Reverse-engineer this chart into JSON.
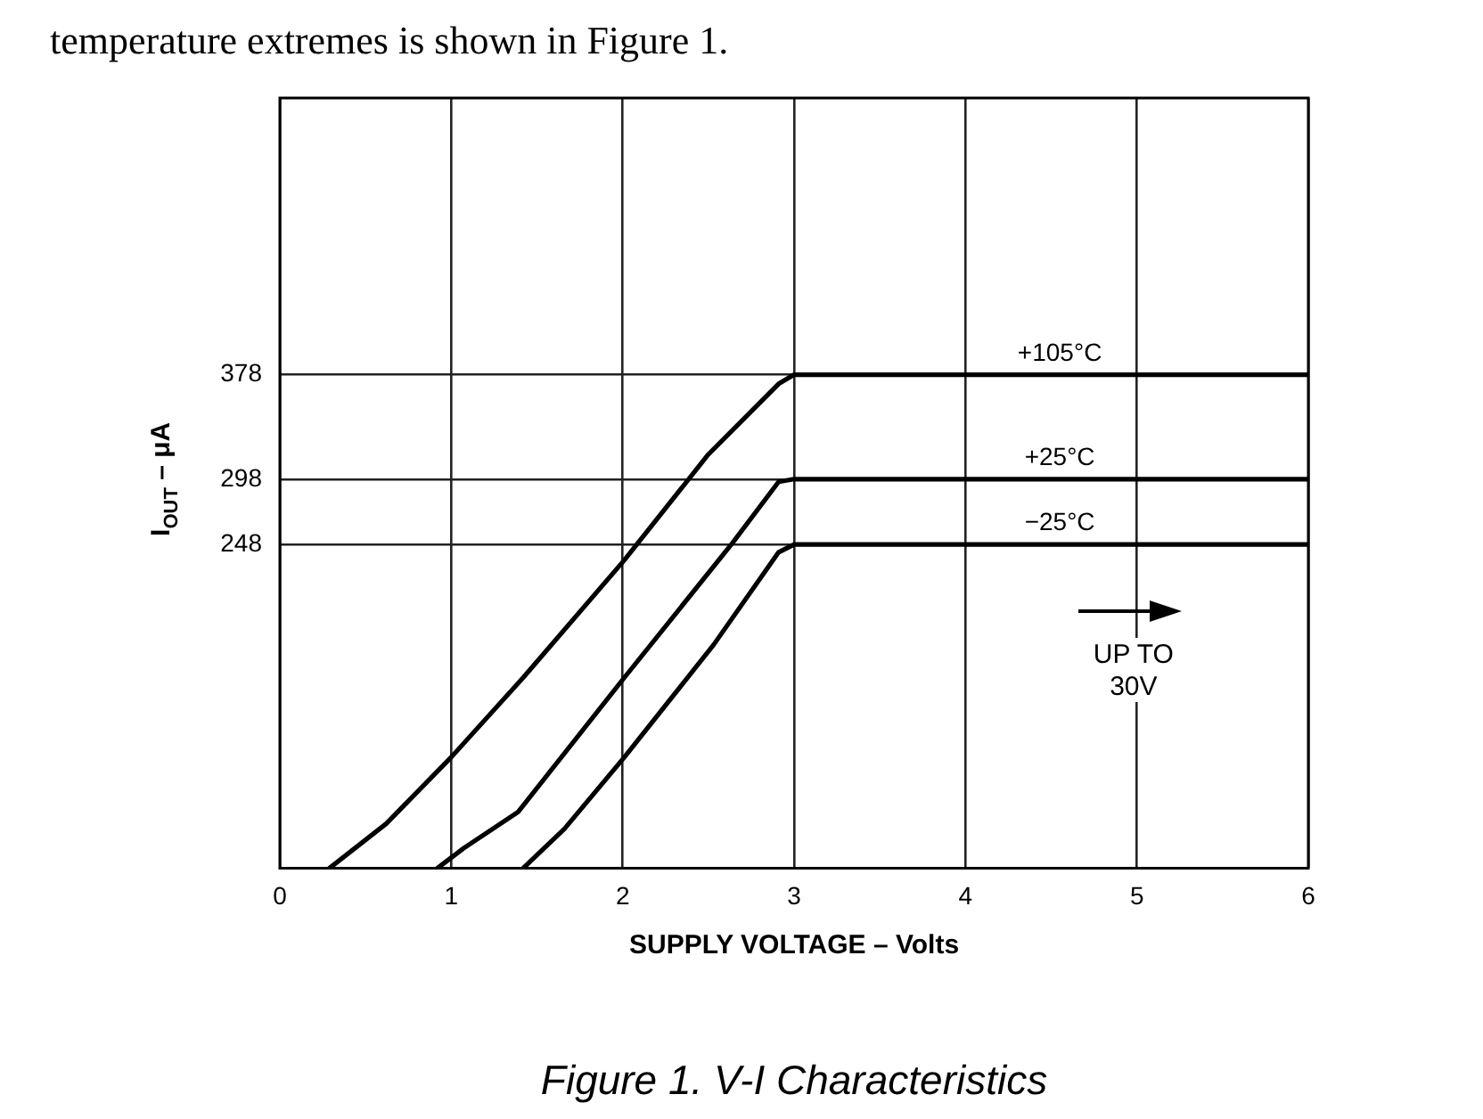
{
  "chart_data": {
    "type": "line",
    "xlabel": "SUPPLY VOLTAGE – Volts",
    "ylabel": "I$_{OUT}$ – μA",
    "xlim": [
      0,
      6
    ],
    "xticks": [
      0,
      1,
      2,
      3,
      4,
      5,
      6
    ],
    "ylim": [
      0,
      590
    ],
    "yticks": [
      248,
      298,
      378
    ],
    "grid": true,
    "legend": false,
    "marker": "none",
    "line_style": "solid",
    "series": [
      {
        "name": "+105°C",
        "color": "#000000",
        "x": [
          0.29,
          0.62,
          1.0,
          1.42,
          2.01,
          2.5,
          2.91,
          3.0,
          6.0
        ],
        "values": [
          0,
          34,
          85,
          146,
          236,
          317,
          371,
          378,
          378
        ]
      },
      {
        "name": "+25°C",
        "color": "#000000",
        "x": [
          0.92,
          1.07,
          1.39,
          2.01,
          2.64,
          2.91,
          3.0,
          6.0
        ],
        "values": [
          0,
          15,
          43,
          146,
          249,
          296,
          298,
          298
        ]
      },
      {
        "name": "−25°C",
        "color": "#000000",
        "x": [
          1.42,
          1.66,
          2.01,
          2.53,
          2.91,
          3.0,
          6.0
        ],
        "values": [
          0,
          30,
          85,
          171,
          242,
          248,
          248
        ]
      }
    ],
    "annotations": [
      "temperature extremes is shown in Figure 1.",
      "UP TO 30V",
      "Figure 1. V-I Characteristics"
    ]
  }
}
